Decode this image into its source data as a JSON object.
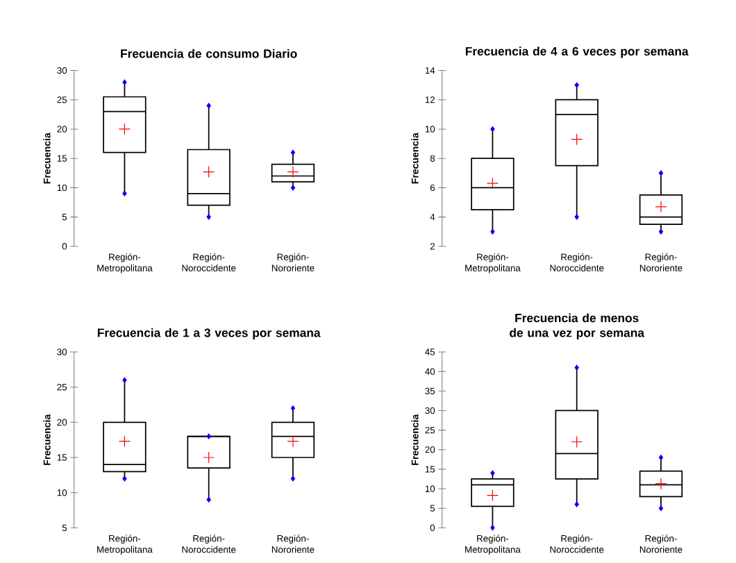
{
  "chart_data": [
    {
      "type": "box",
      "title": "Frecuencia de consumo Diario",
      "ylabel": "Frecuencia",
      "categories": [
        "Región-Metropolitana",
        "Región-Noroccidente",
        "Región-Nororiente"
      ],
      "ylim": [
        0,
        30
      ],
      "yticks": [
        0,
        5,
        10,
        15,
        20,
        25,
        30
      ],
      "boxes": [
        {
          "low": 9,
          "q1": 16,
          "median": 23,
          "q3": 25.5,
          "high": 28,
          "mean": 20
        },
        {
          "low": 5,
          "q1": 7,
          "median": 9,
          "q3": 16.5,
          "high": 24,
          "mean": 12.7
        },
        {
          "low": 10,
          "q1": 11,
          "median": 12,
          "q3": 14,
          "high": 16,
          "mean": 12.7
        }
      ],
      "series": [
        {
          "type": "scatter",
          "marker": "diamond",
          "color": "#0000ff",
          "x": [
            "Región-Metropolitana",
            "Región-Noroccidente",
            "Región-Nororiente"
          ],
          "values": [
            9,
            5,
            10
          ]
        },
        {
          "type": "scatter",
          "marker": "diamond",
          "color": "#0000ff",
          "x": [
            "Región-Metropolitana",
            "Región-Noroccidente",
            "Región-Nororiente"
          ],
          "values": [
            28,
            24,
            16
          ]
        }
      ]
    },
    {
      "type": "box",
      "title": "Frecuencia de 4 a 6 veces por semana",
      "ylabel": "Frecuencia",
      "categories": [
        "Región-Metropolitana",
        "Región-Noroccidente",
        "Región-Nororiente"
      ],
      "ylim": [
        2,
        14
      ],
      "yticks": [
        2,
        4,
        6,
        8,
        10,
        12,
        14
      ],
      "boxes": [
        {
          "low": 3,
          "q1": 4.5,
          "median": 6,
          "q3": 8,
          "high": 10,
          "mean": 6.3
        },
        {
          "low": 4,
          "q1": 7.5,
          "median": 11,
          "q3": 12,
          "high": 13,
          "mean": 9.3
        },
        {
          "low": 3,
          "q1": 3.5,
          "median": 4,
          "q3": 5.5,
          "high": 7,
          "mean": 4.7
        }
      ],
      "series": [
        {
          "type": "scatter",
          "marker": "diamond",
          "color": "#0000ff",
          "x": [
            "Región-Metropolitana",
            "Región-Noroccidente",
            "Región-Nororiente"
          ],
          "values": [
            3,
            4,
            3
          ]
        },
        {
          "type": "scatter",
          "marker": "diamond",
          "color": "#0000ff",
          "x": [
            "Región-Metropolitana",
            "Región-Noroccidente",
            "Región-Nororiente"
          ],
          "values": [
            10,
            13,
            7
          ]
        }
      ]
    },
    {
      "type": "box",
      "title": "Frecuencia de 1 a 3 veces por semana",
      "ylabel": "Frecuencia",
      "categories": [
        "Región-Metropolitana",
        "Región-Noroccidente",
        "Región-Nororiente"
      ],
      "ylim": [
        5,
        30
      ],
      "yticks": [
        5,
        10,
        15,
        20,
        25,
        30
      ],
      "boxes": [
        {
          "low": 12,
          "q1": 13,
          "median": 14,
          "q3": 20,
          "high": 26,
          "mean": 17.3
        },
        {
          "low": 9,
          "q1": 13.5,
          "median": 18,
          "q3": 18,
          "high": 18,
          "mean": 15
        },
        {
          "low": 12,
          "q1": 15,
          "median": 18,
          "q3": 20,
          "high": 22,
          "mean": 17.3
        }
      ],
      "series": [
        {
          "type": "scatter",
          "marker": "diamond",
          "color": "#0000ff",
          "x": [
            "Región-Metropolitana",
            "Región-Noroccidente",
            "Región-Nororiente"
          ],
          "values": [
            12,
            9,
            12
          ]
        },
        {
          "type": "scatter",
          "marker": "diamond",
          "color": "#0000ff",
          "x": [
            "Región-Metropolitana",
            "Región-Noroccidente",
            "Región-Nororiente"
          ],
          "values": [
            26,
            18,
            22
          ]
        }
      ]
    },
    {
      "type": "box",
      "title": "Frecuencia de menos de una vez por semana",
      "ylabel": "Frecuencia",
      "categories": [
        "Región-Metropolitana",
        "Región-Noroccidente",
        "Región-Nororiente"
      ],
      "ylim": [
        0,
        45
      ],
      "yticks": [
        0,
        5,
        10,
        15,
        20,
        25,
        30,
        35,
        40,
        45
      ],
      "boxes": [
        {
          "low": 0,
          "q1": 5.5,
          "median": 11,
          "q3": 12.5,
          "high": 14,
          "mean": 8.3
        },
        {
          "low": 6,
          "q1": 12.5,
          "median": 19,
          "q3": 30,
          "high": 41,
          "mean": 22
        },
        {
          "low": 5,
          "q1": 8,
          "median": 11,
          "q3": 14.5,
          "high": 18,
          "mean": 11.3
        }
      ],
      "series": [
        {
          "type": "scatter",
          "marker": "diamond",
          "color": "#0000ff",
          "x": [
            "Región-Metropolitana",
            "Región-Noroccidente",
            "Región-Nororiente"
          ],
          "values": [
            0,
            6,
            5
          ]
        },
        {
          "type": "scatter",
          "marker": "diamond",
          "color": "#0000ff",
          "x": [
            "Región-Metropolitana",
            "Región-Noroccidente",
            "Región-Nororiente"
          ],
          "values": [
            14,
            41,
            18
          ]
        }
      ]
    }
  ]
}
